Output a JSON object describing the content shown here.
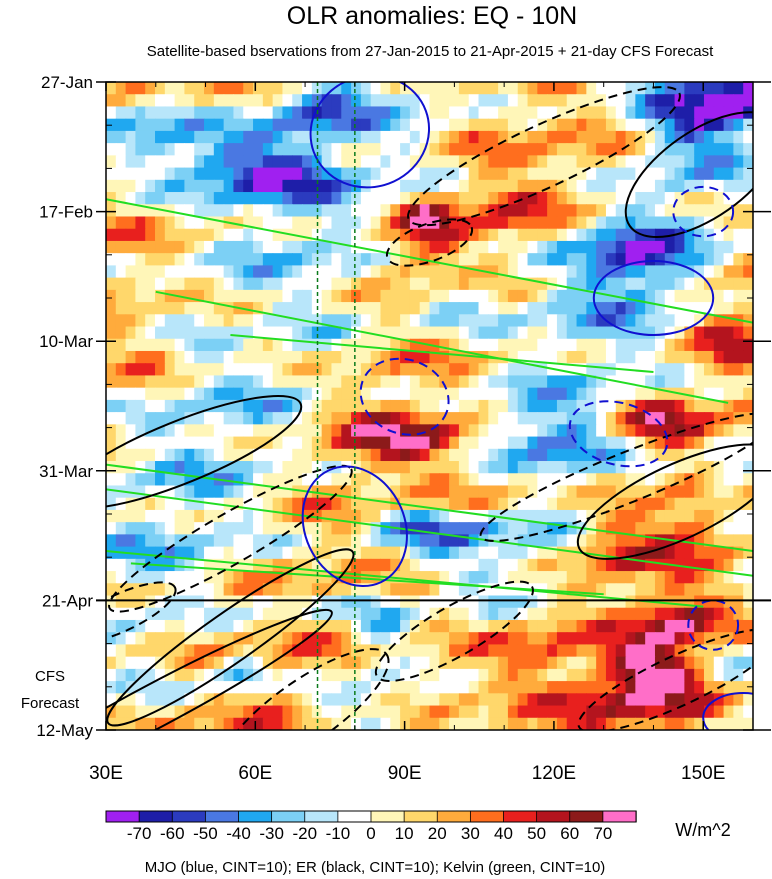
{
  "chart_data": {
    "type": "heatmap",
    "title": "OLR anomalies: EQ - 10N",
    "subtitle": "Satellite-based bservations from 27-Jan-2015 to 21-Apr-2015 + 21-day CFS Forecast",
    "xlabel": "",
    "ylabel": "",
    "x_range": [
      30,
      160
    ],
    "x_ticks": [
      "30E",
      "60E",
      "90E",
      "120E",
      "150E"
    ],
    "x_tick_values": [
      30,
      60,
      90,
      120,
      150
    ],
    "y_ticks": [
      "27-Jan",
      "17-Feb",
      "10-Mar",
      "31-Mar",
      "21-Apr",
      "12-May"
    ],
    "y_tick_days": [
      0,
      21,
      42,
      63,
      84,
      105
    ],
    "observation_end_day": 84,
    "forecast_label": [
      "CFS",
      "Forecast"
    ],
    "reference_lines_lon": [
      72.5,
      80
    ],
    "units": "W/m^2",
    "colorbar": {
      "levels": [
        "-70",
        "-60",
        "-50",
        "-40",
        "-30",
        "-20",
        "-10",
        "0",
        "10",
        "20",
        "30",
        "40",
        "50",
        "60",
        "70"
      ],
      "colors": [
        "#a020f0",
        "#1e1ea8",
        "#2b3bbf",
        "#4a78e2",
        "#20a8f0",
        "#7cd0f5",
        "#b8e6fa",
        "#ffffff",
        "#fff6b8",
        "#ffd76b",
        "#ffab3c",
        "#ff6e1e",
        "#e8201e",
        "#b4141e",
        "#8c1a1a",
        "#ff6ec8"
      ]
    },
    "legend": "MJO (blue, CINT=10); ER (black, CINT=10); Kelvin (green, CINT=10)",
    "contour_colors": {
      "mjo": "#1010d0",
      "er": "#000000",
      "kelvin": "#22dd22"
    }
  }
}
